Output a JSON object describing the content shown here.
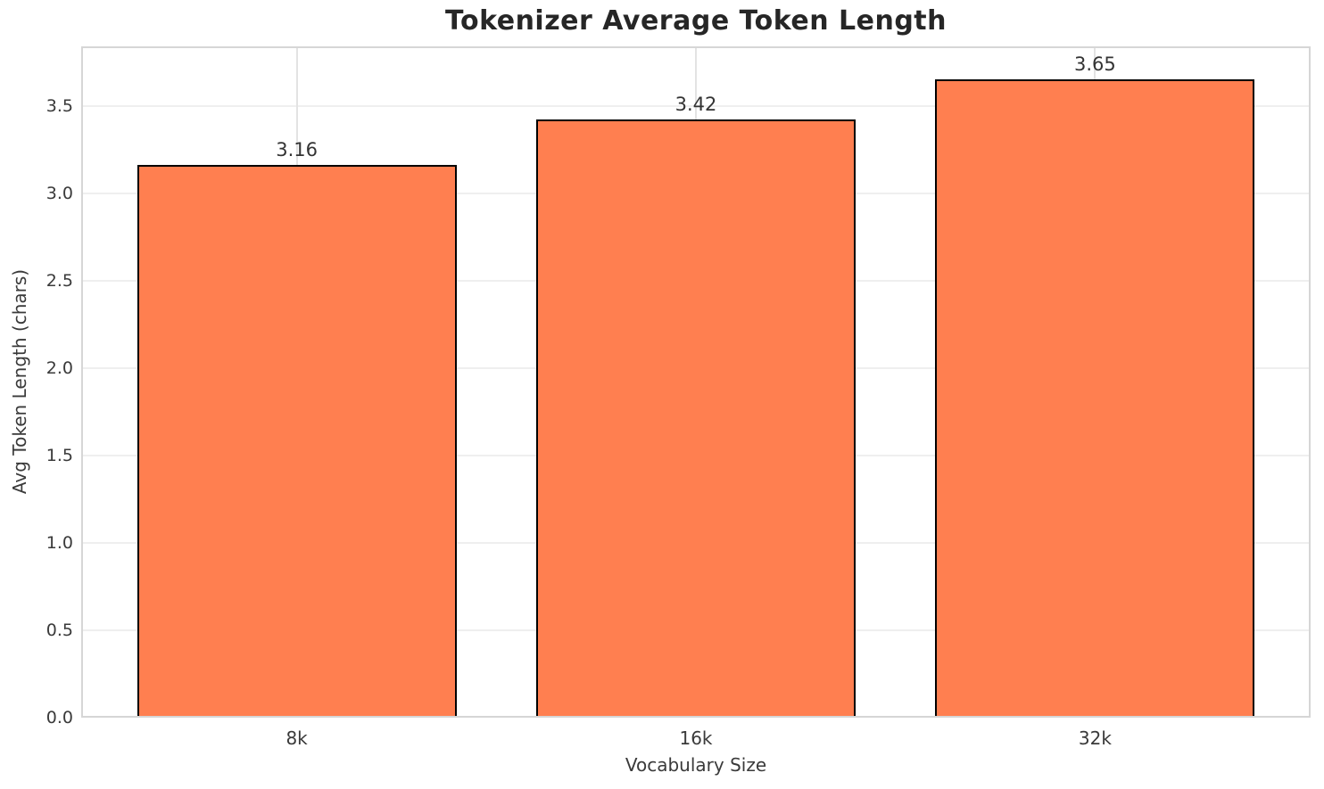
{
  "chart_data": {
    "type": "bar",
    "title": "Tokenizer Average Token Length",
    "xlabel": "Vocabulary Size",
    "ylabel": "Avg Token Length (chars)",
    "categories": [
      "8k",
      "16k",
      "32k"
    ],
    "values": [
      3.16,
      3.42,
      3.65
    ],
    "value_labels": [
      "3.16",
      "3.42",
      "3.65"
    ],
    "ytick_labels": [
      "0.0",
      "0.5",
      "1.0",
      "1.5",
      "2.0",
      "2.5",
      "3.0",
      "3.5"
    ],
    "yticks": [
      0.0,
      0.5,
      1.0,
      1.5,
      2.0,
      2.5,
      3.0,
      3.5
    ],
    "ylim": [
      0,
      3.84
    ],
    "xlim": [
      -0.54,
      2.54
    ],
    "bar_width_units": 0.8,
    "grid": true,
    "legend_position": "none",
    "colors": {
      "bar_fill": "#FF7F50",
      "bar_edge": "#000000",
      "grid_h": "#efefef",
      "grid_v": "#e3e3e3",
      "spine": "#d6d6d6",
      "title_text": "#262626",
      "tick_text": "#3a3a3a",
      "value_label_text": "#333333",
      "background": "#ffffff"
    }
  }
}
